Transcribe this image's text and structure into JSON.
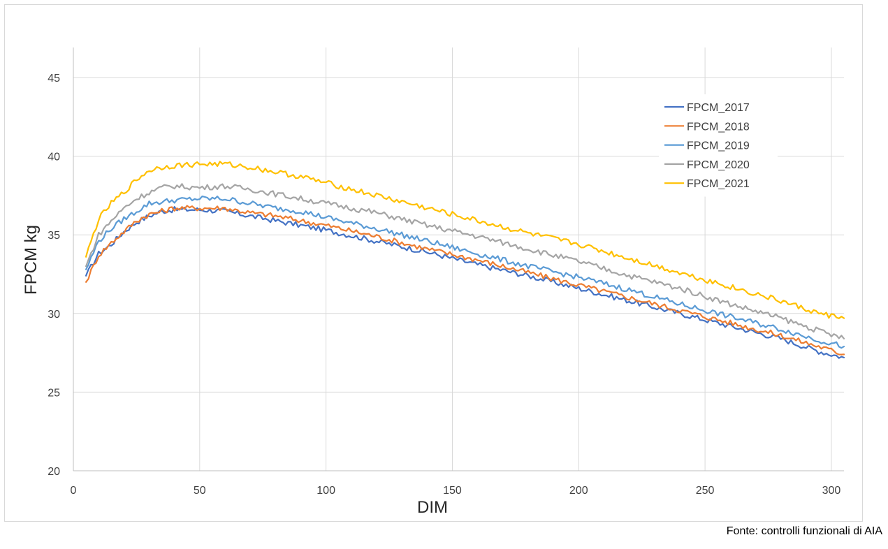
{
  "chart_data": {
    "type": "line",
    "xlabel": "DIM",
    "ylabel": "FPCM kg",
    "xlim": [
      0,
      305
    ],
    "ylim": [
      20,
      47
    ],
    "x_ticks": [
      0,
      50,
      100,
      150,
      200,
      250,
      300
    ],
    "y_ticks": [
      20,
      25,
      30,
      35,
      40,
      45
    ],
    "grid": true,
    "legend_position": "top-right",
    "series": [
      {
        "name": "FPCM_2017",
        "color": "#4472C4",
        "x": [
          5,
          10,
          15,
          20,
          25,
          30,
          35,
          40,
          50,
          60,
          70,
          80,
          90,
          100,
          120,
          140,
          160,
          180,
          200,
          220,
          240,
          260,
          280,
          295,
          305
        ],
        "y": [
          32.4,
          33.8,
          34.4,
          35.2,
          35.8,
          36.2,
          36.5,
          36.6,
          36.6,
          36.5,
          36.2,
          35.9,
          35.6,
          35.3,
          34.6,
          33.9,
          33.1,
          32.4,
          31.6,
          30.8,
          30.0,
          29.2,
          28.4,
          27.6,
          27.2
        ]
      },
      {
        "name": "FPCM_2018",
        "color": "#ED7D31",
        "x": [
          5,
          10,
          15,
          20,
          25,
          30,
          35,
          40,
          50,
          60,
          70,
          80,
          90,
          100,
          120,
          140,
          160,
          180,
          200,
          220,
          240,
          260,
          280,
          295,
          305
        ],
        "y": [
          32.0,
          33.7,
          34.5,
          35.2,
          35.9,
          36.3,
          36.5,
          36.7,
          36.7,
          36.7,
          36.4,
          36.2,
          35.9,
          35.6,
          34.9,
          34.1,
          33.4,
          32.6,
          31.8,
          31.0,
          30.2,
          29.4,
          28.6,
          27.9,
          27.4
        ]
      },
      {
        "name": "FPCM_2019",
        "color": "#5B9BD5",
        "x": [
          5,
          10,
          15,
          20,
          25,
          30,
          35,
          40,
          50,
          60,
          70,
          80,
          90,
          100,
          120,
          140,
          160,
          180,
          200,
          220,
          240,
          260,
          280,
          295,
          305
        ],
        "y": [
          32.8,
          34.6,
          35.4,
          36.0,
          36.5,
          37.0,
          37.1,
          37.2,
          37.3,
          37.3,
          37.0,
          36.7,
          36.5,
          36.1,
          35.4,
          34.6,
          33.8,
          33.0,
          32.3,
          31.5,
          30.6,
          29.8,
          29.0,
          28.3,
          27.9
        ]
      },
      {
        "name": "FPCM_2020",
        "color": "#A5A5A5",
        "x": [
          5,
          10,
          15,
          20,
          25,
          30,
          35,
          40,
          50,
          60,
          70,
          80,
          90,
          100,
          120,
          140,
          160,
          180,
          200,
          220,
          240,
          260,
          280,
          295,
          305
        ],
        "y": [
          33.0,
          35.0,
          35.9,
          36.7,
          37.3,
          37.7,
          38.0,
          38.1,
          38.0,
          38.1,
          37.9,
          37.6,
          37.3,
          37.0,
          36.4,
          35.6,
          34.9,
          34.1,
          33.3,
          32.4,
          31.6,
          30.6,
          29.7,
          28.9,
          28.4
        ]
      },
      {
        "name": "FPCM_2021",
        "color": "#FFC000",
        "x": [
          5,
          10,
          15,
          20,
          25,
          30,
          35,
          40,
          50,
          60,
          70,
          80,
          90,
          100,
          120,
          140,
          160,
          180,
          200,
          220,
          240,
          260,
          280,
          295,
          305
        ],
        "y": [
          33.6,
          36.0,
          37.0,
          37.7,
          38.5,
          39.1,
          39.3,
          39.4,
          39.5,
          39.5,
          39.3,
          39.0,
          38.7,
          38.3,
          37.5,
          36.7,
          35.9,
          35.1,
          34.4,
          33.5,
          32.6,
          31.7,
          30.8,
          30.0,
          29.7
        ]
      }
    ]
  },
  "source": "Fonte: controlli funzionali di AIA"
}
